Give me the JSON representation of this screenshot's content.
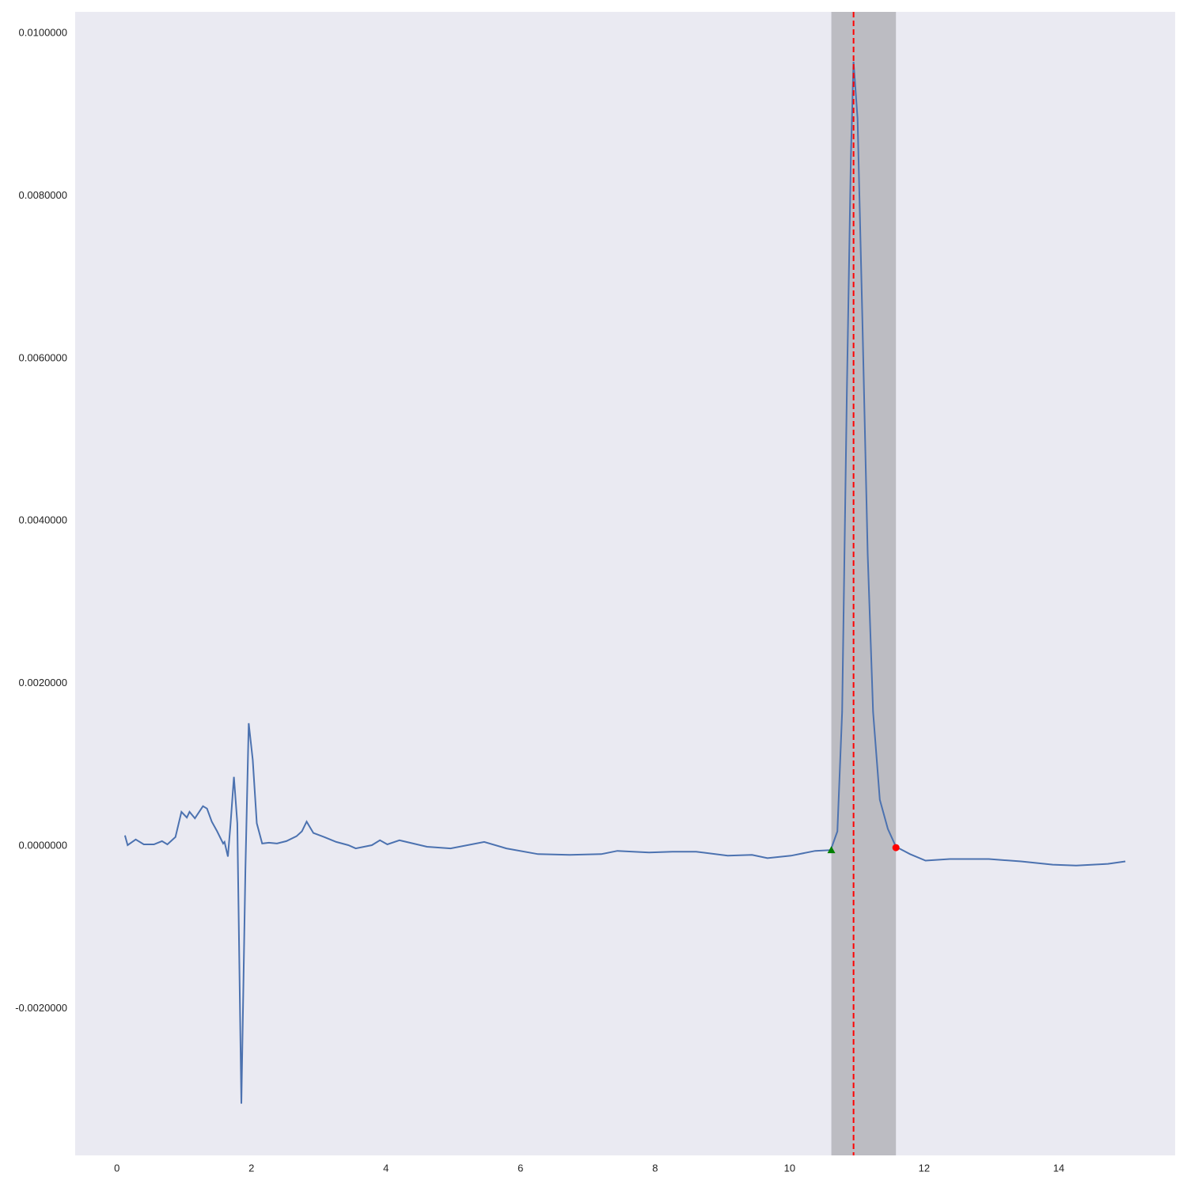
{
  "chart_data": {
    "type": "line",
    "x": [
      0.12,
      0.16,
      0.28,
      0.4,
      0.55,
      0.67,
      0.75,
      0.87,
      0.96,
      1.04,
      1.08,
      1.16,
      1.28,
      1.34,
      1.41,
      1.49,
      1.58,
      1.6,
      1.65,
      1.69,
      1.74,
      1.79,
      1.85,
      1.91,
      1.96,
      2.02,
      2.08,
      2.16,
      2.26,
      2.38,
      2.52,
      2.67,
      2.75,
      2.82,
      2.92,
      3.08,
      3.26,
      3.44,
      3.55,
      3.79,
      3.91,
      4.02,
      4.2,
      4.61,
      4.96,
      5.46,
      5.79,
      6.26,
      6.73,
      7.2,
      7.44,
      7.91,
      8.26,
      8.61,
      9.08,
      9.44,
      9.67,
      10.02,
      10.38,
      10.61,
      10.71,
      10.78,
      10.85,
      10.91,
      10.95,
      11.01,
      11.08,
      11.16,
      11.24,
      11.34,
      11.46,
      11.58,
      11.79,
      12.02,
      12.38,
      12.96,
      13.44,
      13.91,
      14.26,
      14.73,
      14.99
    ],
    "values": [
      0.00013,
      1e-05,
      8e-05,
      2e-05,
      2e-05,
      6e-05,
      2e-05,
      0.00011,
      0.00042,
      0.00035,
      0.00042,
      0.00034,
      0.00049,
      0.00046,
      0.0003,
      0.00018,
      3e-05,
      5e-05,
      -0.00013,
      0.00028,
      0.00085,
      0.00028,
      -0.00317,
      -0.0003,
      0.00151,
      0.00106,
      0.00028,
      3e-05,
      4e-05,
      3e-05,
      6e-05,
      0.00012,
      0.00018,
      0.0003,
      0.00016,
      0.00011,
      5e-05,
      1e-05,
      -3e-05,
      1e-05,
      7e-05,
      2e-05,
      7e-05,
      -1e-05,
      -3e-05,
      5e-05,
      -3e-05,
      -0.0001,
      -0.00011,
      -0.0001,
      -6e-05,
      -8e-05,
      -7e-05,
      -7e-05,
      -0.00012,
      -0.00011,
      -0.00015,
      -0.00012,
      -6e-05,
      -5e-05,
      0.00018,
      0.00165,
      0.00554,
      0.00846,
      0.00965,
      0.00895,
      0.00651,
      0.00359,
      0.00165,
      0.00057,
      0.00021,
      -1e-05,
      -0.0001,
      -0.00018,
      -0.00016,
      -0.00016,
      -0.00019,
      -0.00023,
      -0.00024,
      -0.00022,
      -0.00019
    ],
    "color": "#4c72b0",
    "xlim": [
      -0.62,
      15.73
    ],
    "xticks": [
      0,
      2,
      4,
      6,
      8,
      10,
      12,
      14
    ],
    "ylim": [
      -0.003807,
      0.010263
    ],
    "yticks": [
      {
        "value": -0.002,
        "label": "-0.0020000"
      },
      {
        "value": 0,
        "label": "0.0000000"
      },
      {
        "value": 0.002,
        "label": "0.0020000"
      },
      {
        "value": 0.004,
        "label": "0.0040000"
      },
      {
        "value": 0.006,
        "label": "0.0060000"
      },
      {
        "value": 0.008,
        "label": "0.0080000"
      },
      {
        "value": 0.01,
        "label": "0.0100000"
      }
    ],
    "shaded_span": [
      10.62,
      11.58
    ],
    "shade_color": "#a8a8ae",
    "vline": 10.95,
    "vline_color": "#ff0000",
    "start_marker": {
      "x": 10.62,
      "y": -5e-05,
      "color": "#008000"
    },
    "end_marker": {
      "x": 11.58,
      "y": -2e-05,
      "color": "#ff0000"
    }
  }
}
